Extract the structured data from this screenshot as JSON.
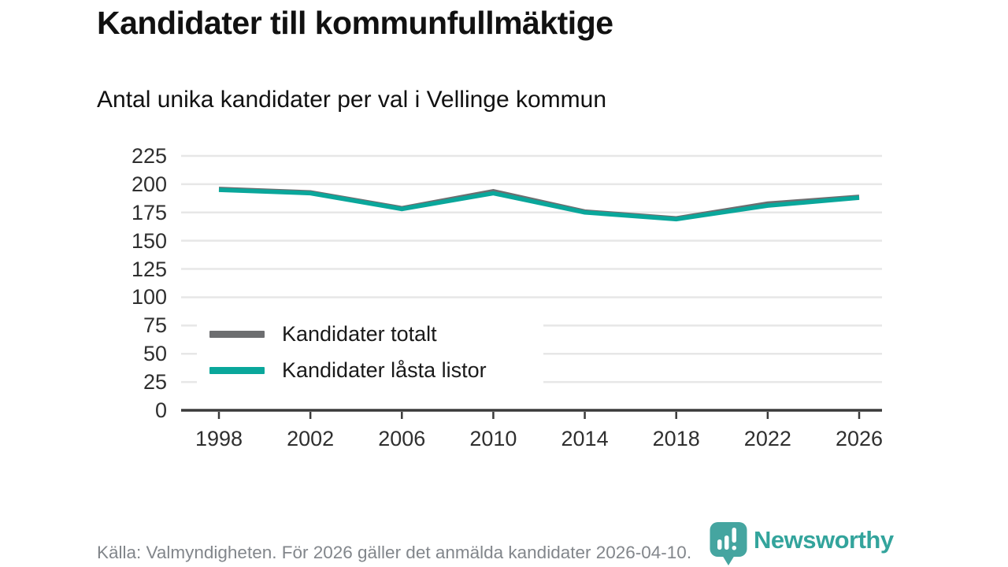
{
  "header": {
    "title": "Kandidater till kommunfullmäktige",
    "subtitle": "Antal unika kandidater per val i Vellinge kommun"
  },
  "chart_data": {
    "type": "line",
    "title": "Kandidater till kommunfullmäktige",
    "subtitle": "Antal unika kandidater per val i Vellinge kommun",
    "x": [
      1998,
      2002,
      2006,
      2010,
      2014,
      2018,
      2022,
      2026
    ],
    "series": [
      {
        "name": "Kandidater totalt",
        "color": "#6d6e70",
        "values": [
          196,
          193,
          179,
          194,
          176,
          170,
          183,
          189
        ]
      },
      {
        "name": "Kandidater låsta listor",
        "color": "#0aa79b",
        "values": [
          195,
          192,
          178,
          192,
          175,
          169,
          181,
          188
        ]
      }
    ],
    "xlabel": "",
    "ylabel": "",
    "ylim": [
      0,
      225
    ],
    "y_tick_step": 25,
    "grid": true,
    "legend_position": "inside-bottom-left"
  },
  "footer": {
    "source": "Källa: Valmyndigheten. För 2026 gäller det anmälda kandidater 2026-04-10.",
    "brand": "Newsworthy"
  },
  "colors": {
    "accent_teal": "#0aa79b",
    "brand_teal": "#33a49c",
    "line_gray": "#6d6e70",
    "grid_line": "#e7e7e7",
    "axis_line": "#3b3b3b",
    "text_dark": "#111111",
    "tick_text": "#2f2f2f",
    "muted_text": "#82868b"
  }
}
